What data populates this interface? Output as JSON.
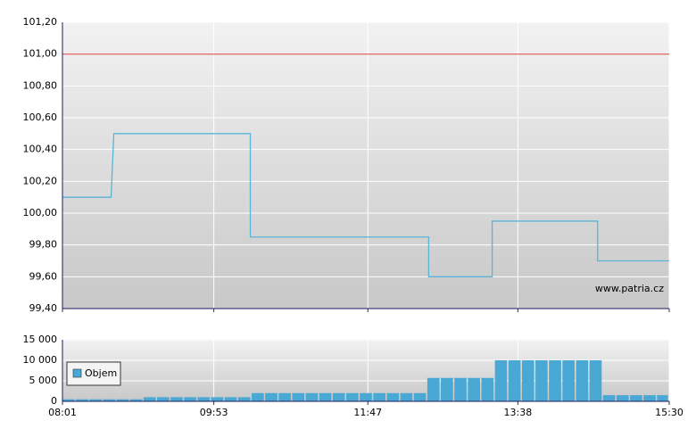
{
  "chart_data": [
    {
      "type": "line",
      "x": [
        "08:01",
        "08:37",
        "08:39",
        "10:20",
        "10:20",
        "12:32",
        "12:32",
        "13:19",
        "13:19",
        "14:37",
        "14:37",
        "15:30"
      ],
      "series": [
        {
          "color": "#5ab4d6",
          "values": [
            100.1,
            100.1,
            100.5,
            100.5,
            99.85,
            99.85,
            99.6,
            99.6,
            99.95,
            99.95,
            99.7,
            99.7
          ]
        }
      ],
      "reference_line": 101.0,
      "reference_color": "#e05050",
      "annotation": "www.patria.cz",
      "xlim": [
        "08:01",
        "15:30"
      ],
      "xticks": [
        "08:01",
        "09:53",
        "11:47",
        "13:38",
        "15:30"
      ],
      "ylim": [
        99.4,
        101.2
      ],
      "yticks": [
        {
          "value": 99.4,
          "label": "99,40"
        },
        {
          "value": 99.6,
          "label": "99,60"
        },
        {
          "value": 99.8,
          "label": "99,80"
        },
        {
          "value": 100.0,
          "label": "100,00"
        },
        {
          "value": 100.2,
          "label": "100,20"
        },
        {
          "value": 100.4,
          "label": "100,40"
        },
        {
          "value": 100.6,
          "label": "100,60"
        },
        {
          "value": 100.8,
          "label": "100,80"
        },
        {
          "value": 101.0,
          "label": "101,00"
        },
        {
          "value": 101.2,
          "label": "101,20"
        }
      ],
      "grid": true
    },
    {
      "type": "bar",
      "x": [
        "08:01",
        "08:11",
        "08:21",
        "08:31",
        "08:41",
        "08:51",
        "09:01",
        "09:11",
        "09:21",
        "09:31",
        "09:41",
        "09:51",
        "10:01",
        "10:11",
        "10:21",
        "10:31",
        "10:41",
        "10:51",
        "11:01",
        "11:11",
        "11:21",
        "11:31",
        "11:41",
        "11:51",
        "12:01",
        "12:11",
        "12:21",
        "12:31",
        "12:41",
        "12:51",
        "13:01",
        "13:11",
        "13:21",
        "13:31",
        "13:41",
        "13:51",
        "14:01",
        "14:11",
        "14:21",
        "14:31",
        "14:41",
        "14:51",
        "15:01",
        "15:11",
        "15:21"
      ],
      "series": [
        {
          "name": "Objem",
          "color": "#4aa8d4",
          "values": [
            500,
            500,
            500,
            500,
            500,
            500,
            1000,
            1000,
            1000,
            1000,
            1000,
            1000,
            1000,
            1000,
            2000,
            2000,
            2000,
            2000,
            2000,
            2000,
            2000,
            2000,
            2000,
            2000,
            2000,
            2000,
            2000,
            5700,
            5700,
            5700,
            5700,
            5700,
            10000,
            10000,
            10000,
            10000,
            10000,
            10000,
            10000,
            10000,
            1500,
            1500,
            1500,
            1500,
            1500
          ]
        }
      ],
      "xlim": [
        "08:01",
        "15:30"
      ],
      "xticks": [
        "08:01",
        "09:53",
        "11:47",
        "13:38",
        "15:30"
      ],
      "ylim": [
        0,
        15000
      ],
      "yticks": [
        0,
        {
          "value": 5000,
          "label": "5 000"
        },
        {
          "value": 10000,
          "label": "10 000"
        },
        {
          "value": 15000,
          "label": "15 000"
        }
      ],
      "grid": true
    }
  ]
}
